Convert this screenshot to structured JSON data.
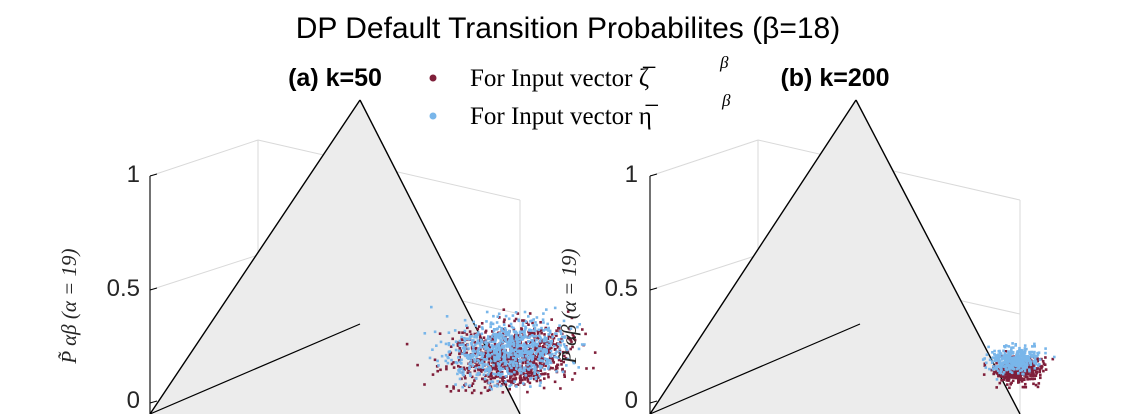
{
  "title": "DP Default Transition Probabilites (β=18)",
  "legend": {
    "entries": [
      {
        "label": "For Input vector ζ̅",
        "superscript": "β",
        "color": "#7f1f3a"
      },
      {
        "label": "For Input vector η̅",
        "superscript": "β",
        "color": "#79b6ea"
      }
    ]
  },
  "chart_data": [
    {
      "type": "scatter",
      "subtitle": "(a) k=50",
      "zlabel": "P̃ αβ (α = 19)",
      "z_ticks": [
        "0",
        "0.5",
        "1"
      ],
      "zlim": [
        0,
        1
      ],
      "grid": true,
      "series": [
        {
          "name": "For Input vector ζ̅β",
          "color": "#7f1f3a",
          "center": [
            0.3,
            0.48,
            0.1
          ],
          "spread": 0.07
        },
        {
          "name": "For Input vector η̅β",
          "color": "#79b6ea",
          "center": [
            0.3,
            0.46,
            0.14
          ],
          "spread": 0.07
        }
      ]
    },
    {
      "type": "scatter",
      "subtitle": "(b) k=200",
      "zlabel": "P̃ αβ (α = 19)",
      "z_ticks": [
        "0",
        "0.5",
        "1"
      ],
      "zlim": [
        0,
        1
      ],
      "grid": true,
      "series": [
        {
          "name": "For Input vector ζ̅β",
          "color": "#7f1f3a",
          "center": [
            0.36,
            0.4,
            0.08
          ],
          "spread": 0.028
        },
        {
          "name": "For Input vector η̅β",
          "color": "#79b6ea",
          "center": [
            0.36,
            0.38,
            0.13
          ],
          "spread": 0.028
        }
      ]
    }
  ]
}
